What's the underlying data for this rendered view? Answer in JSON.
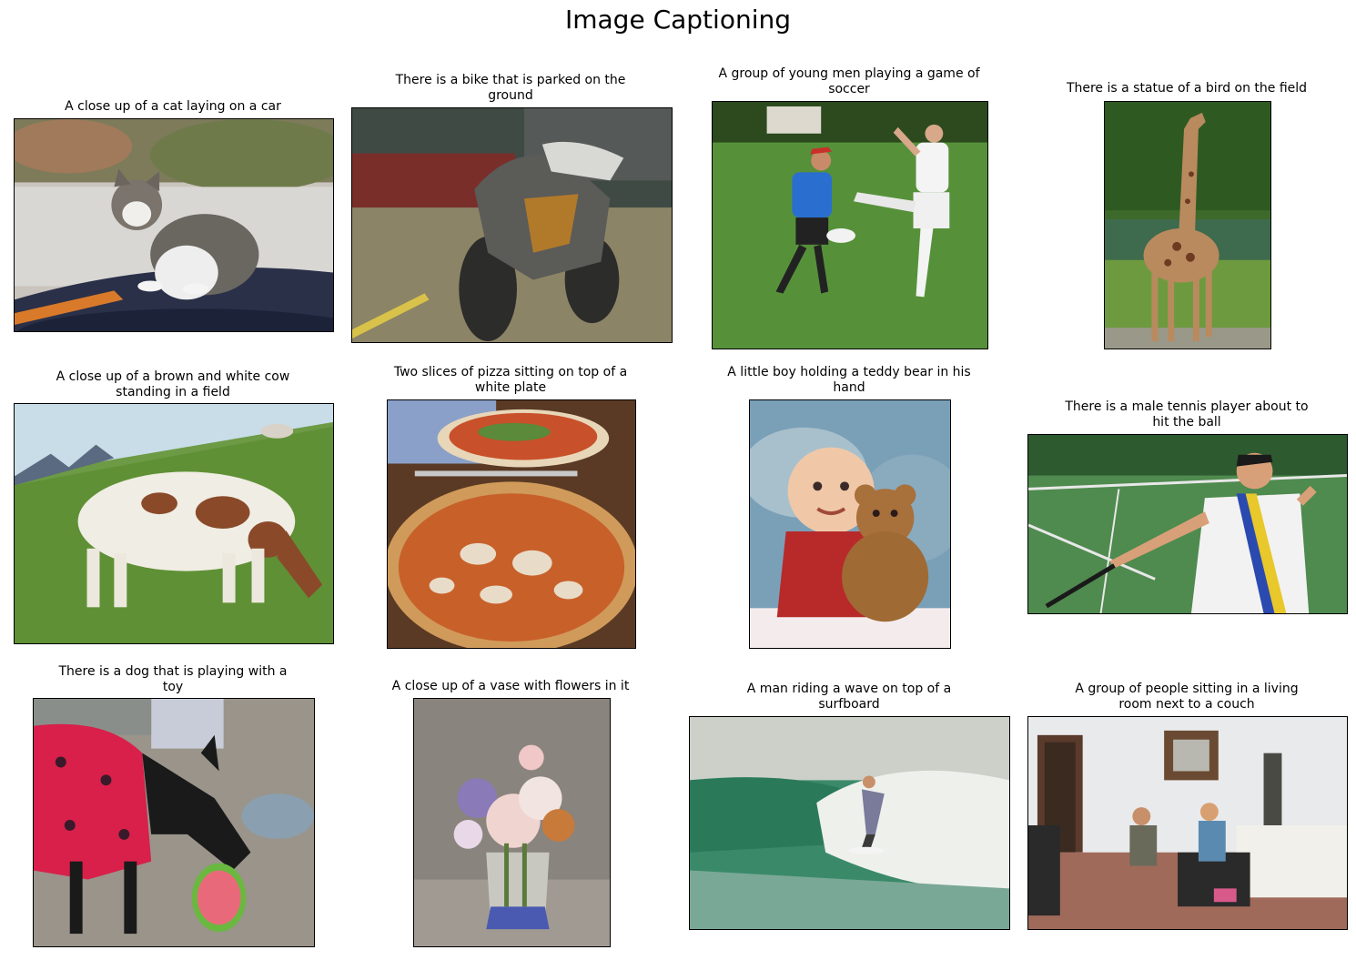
{
  "title": "Image Captioning",
  "panels": [
    {
      "caption": "A close up of a cat laying on a car",
      "subject": "cat on car hood"
    },
    {
      "caption": "There is a bike that is parked on the\nground",
      "subject": "motorcycle"
    },
    {
      "caption": "A group of young men playing a game of\nsoccer",
      "subject": "two men playing frisbee on grass"
    },
    {
      "caption": "There is a statue of a bird on the field",
      "subject": "giraffe on grass"
    },
    {
      "caption": "A close up of a brown and white cow\nstanding in a field",
      "subject": "cow grazing on hillside"
    },
    {
      "caption": "Two slices of pizza sitting on top of a\nwhite plate",
      "subject": "two pizzas on table"
    },
    {
      "caption": "A little boy holding a teddy bear in his\nhand",
      "subject": "baby with teddy bear"
    },
    {
      "caption": "There is a male tennis player about to\nhit the ball",
      "subject": "tennis player"
    },
    {
      "caption": "There is a dog that is playing with a\ntoy",
      "subject": "dog with frisbee"
    },
    {
      "caption": "A close up of a vase with flowers in it",
      "subject": "painting of flowers in vase"
    },
    {
      "caption": "A man riding a wave on top of a\nsurfboard",
      "subject": "surfer on wave"
    },
    {
      "caption": "A group of people sitting in a living\nroom next to a couch",
      "subject": "people in living room"
    }
  ]
}
